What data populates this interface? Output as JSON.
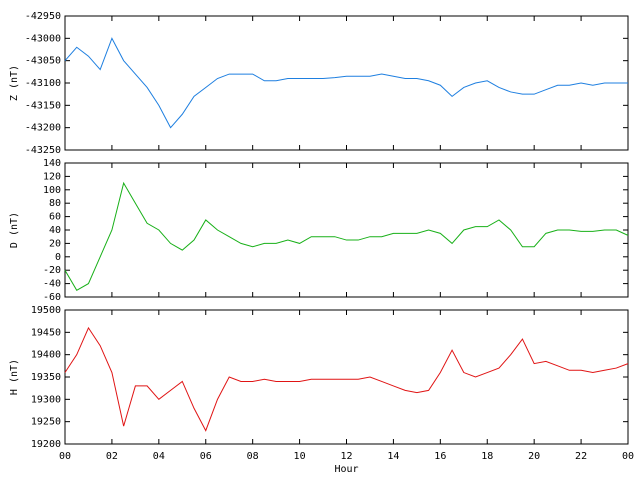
{
  "chart_data": [
    {
      "type": "line",
      "ylabel": "Z (nT)",
      "xlim": [
        0,
        24
      ],
      "ylim": [
        -43250,
        -42950
      ],
      "yticks": [
        -42950,
        -43000,
        -43050,
        -43100,
        -43150,
        -43200,
        -43250
      ],
      "x": [
        0,
        0.5,
        1,
        1.5,
        2,
        2.5,
        3,
        3.5,
        4,
        4.5,
        5,
        5.5,
        6,
        6.5,
        7,
        7.5,
        8,
        8.5,
        9,
        9.5,
        10,
        10.5,
        11,
        11.5,
        12,
        12.5,
        13,
        13.5,
        14,
        14.5,
        15,
        15.5,
        16,
        16.5,
        17,
        17.5,
        18,
        18.5,
        19,
        19.5,
        20,
        20.5,
        21,
        21.5,
        22,
        22.5,
        23,
        23.5,
        24
      ],
      "series": [
        {
          "color": "#1e7fe0",
          "values": [
            -43050,
            -43020,
            -43040,
            -43070,
            -43000,
            -43050,
            -43080,
            -43110,
            -43150,
            -43200,
            -43170,
            -43130,
            -43110,
            -43090,
            -43080,
            -43080,
            -43080,
            -43095,
            -43095,
            -43090,
            -43090,
            -43090,
            -43090,
            -43088,
            -43085,
            -43085,
            -43085,
            -43080,
            -43085,
            -43090,
            -43090,
            -43095,
            -43105,
            -43130,
            -43110,
            -43100,
            -43095,
            -43110,
            -43120,
            -43125,
            -43125,
            -43115,
            -43105,
            -43105,
            -43100,
            -43105,
            -43100,
            -43100,
            -43100
          ]
        }
      ]
    },
    {
      "type": "line",
      "ylabel": "D (nT)",
      "xlim": [
        0,
        24
      ],
      "ylim": [
        -60,
        140
      ],
      "yticks": [
        140,
        120,
        100,
        80,
        60,
        40,
        20,
        0,
        -20,
        -40,
        -60
      ],
      "x": [
        0,
        0.5,
        1,
        1.5,
        2,
        2.5,
        3,
        3.5,
        4,
        4.5,
        5,
        5.5,
        6,
        6.5,
        7,
        7.5,
        8,
        8.5,
        9,
        9.5,
        10,
        10.5,
        11,
        11.5,
        12,
        12.5,
        13,
        13.5,
        14,
        14.5,
        15,
        15.5,
        16,
        16.5,
        17,
        17.5,
        18,
        18.5,
        19,
        19.5,
        20,
        20.5,
        21,
        21.5,
        22,
        22.5,
        23,
        23.5,
        24
      ],
      "series": [
        {
          "color": "#18b018",
          "values": [
            -20,
            -50,
            -40,
            0,
            40,
            110,
            80,
            50,
            40,
            20,
            10,
            25,
            55,
            40,
            30,
            20,
            15,
            20,
            20,
            25,
            20,
            30,
            30,
            30,
            25,
            25,
            30,
            30,
            35,
            35,
            35,
            40,
            35,
            20,
            40,
            45,
            45,
            55,
            40,
            15,
            15,
            35,
            40,
            40,
            38,
            38,
            40,
            40,
            32
          ]
        }
      ]
    },
    {
      "type": "line",
      "ylabel": "H (nT)",
      "xlabel": "Hour",
      "xlim": [
        0,
        24
      ],
      "ylim": [
        19200,
        19500
      ],
      "yticks": [
        19500,
        19450,
        19400,
        19350,
        19300,
        19250,
        19200
      ],
      "xticks": [
        {
          "value": 0,
          "label": "00"
        },
        {
          "value": 2,
          "label": "02"
        },
        {
          "value": 4,
          "label": "04"
        },
        {
          "value": 6,
          "label": "06"
        },
        {
          "value": 8,
          "label": "08"
        },
        10,
        12,
        14,
        16,
        18,
        20,
        22,
        {
          "value": 24,
          "label": "00"
        }
      ],
      "x": [
        0,
        0.5,
        1,
        1.5,
        2,
        2.5,
        3,
        3.5,
        4,
        4.5,
        5,
        5.5,
        6,
        6.5,
        7,
        7.5,
        8,
        8.5,
        9,
        9.5,
        10,
        10.5,
        11,
        11.5,
        12,
        12.5,
        13,
        13.5,
        14,
        14.5,
        15,
        15.5,
        16,
        16.5,
        17,
        17.5,
        18,
        18.5,
        19,
        19.5,
        20,
        20.5,
        21,
        21.5,
        22,
        22.5,
        23,
        23.5,
        24
      ],
      "series": [
        {
          "color": "#e01414",
          "values": [
            19360,
            19400,
            19460,
            19420,
            19360,
            19240,
            19330,
            19330,
            19300,
            19320,
            19340,
            19280,
            19230,
            19300,
            19350,
            19340,
            19340,
            19345,
            19340,
            19340,
            19340,
            19345,
            19345,
            19345,
            19345,
            19345,
            19350,
            19340,
            19330,
            19320,
            19315,
            19320,
            19360,
            19410,
            19360,
            19350,
            19360,
            19370,
            19400,
            19435,
            19380,
            19385,
            19375,
            19365,
            19365,
            19360,
            19365,
            19370,
            19380
          ]
        }
      ]
    }
  ]
}
